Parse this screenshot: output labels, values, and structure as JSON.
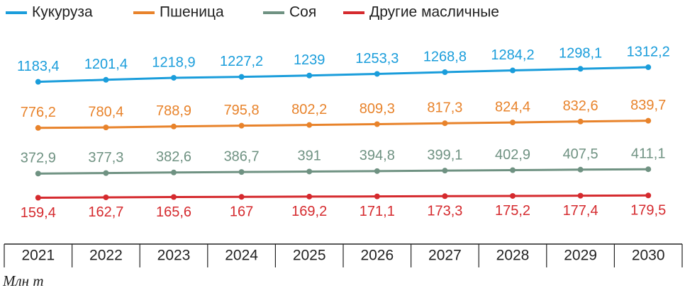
{
  "chart_data": {
    "type": "line",
    "categories": [
      "2021",
      "2022",
      "2023",
      "2024",
      "2025",
      "2026",
      "2027",
      "2028",
      "2029",
      "2030"
    ],
    "series": [
      {
        "name": "Кукуруза",
        "color": "#1a9ddb",
        "values": [
          1183.4,
          1201.4,
          1218.9,
          1227.2,
          1239,
          1253.3,
          1268.8,
          1284.2,
          1298.1,
          1312.2
        ],
        "value_labels": [
          "1183,4",
          "1201,4",
          "1218,9",
          "1227,2",
          "1239",
          "1253,3",
          "1268,8",
          "1284,2",
          "1298,1",
          "1312,2"
        ]
      },
      {
        "name": "Пшеница",
        "color": "#e8832b",
        "values": [
          776.2,
          780.4,
          788.9,
          795.8,
          802.2,
          809.3,
          817.3,
          824.4,
          832.6,
          839.7
        ],
        "value_labels": [
          "776,2",
          "780,4",
          "788,9",
          "795,8",
          "802,2",
          "809,3",
          "817,3",
          "824,4",
          "832,6",
          "839,7"
        ]
      },
      {
        "name": "Соя",
        "color": "#6f9282",
        "values": [
          372.9,
          377.3,
          382.6,
          386.7,
          391,
          394.8,
          399.1,
          402.9,
          407.5,
          411.1
        ],
        "value_labels": [
          "372,9",
          "377,3",
          "382,6",
          "386,7",
          "391",
          "394,8",
          "399,1",
          "402,9",
          "407,5",
          "411,1"
        ]
      },
      {
        "name": "Другие масличные",
        "color": "#d52a2e",
        "values": [
          159.4,
          162.7,
          165.6,
          167,
          169.2,
          171.1,
          173.3,
          175.2,
          177.4,
          179.5
        ],
        "value_labels": [
          "159,4",
          "162,7",
          "165,6",
          "167",
          "169,2",
          "171,1",
          "173,3",
          "175,2",
          "177,4",
          "179,5"
        ]
      }
    ],
    "ylim": [
      0,
      1500
    ],
    "y_unit": "Млн т"
  }
}
